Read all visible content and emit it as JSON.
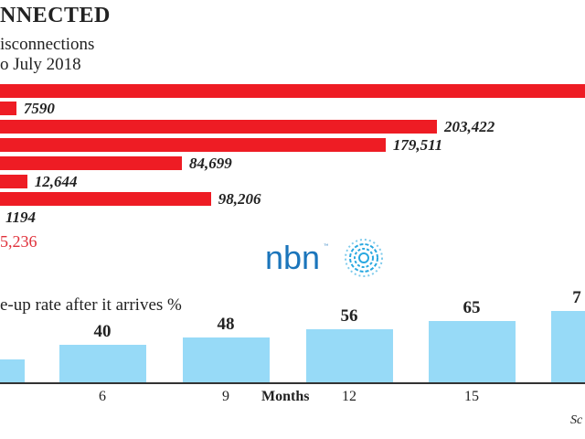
{
  "chart_data": [
    {
      "type": "bar",
      "orientation": "horizontal",
      "title": "NNECTED",
      "subtitle": [
        "isconnections",
        "o July 2018"
      ],
      "values": [
        null,
        7590,
        203422,
        179511,
        84699,
        12644,
        98206,
        1194
      ],
      "labels": [
        "",
        "7590",
        "203,422",
        "179,511",
        "84,699",
        "12,644",
        "98,206",
        "1194"
      ],
      "total_label": "5,236",
      "bar_color": "#ee1c24",
      "total_color": "#e0303a"
    },
    {
      "type": "bar",
      "title": "e-up rate after it arrives %",
      "xlabel": "Months",
      "categories": [
        "",
        "6",
        "9",
        "12",
        "15",
        ""
      ],
      "values": [
        null,
        40,
        48,
        56,
        65,
        null
      ],
      "data_labels": [
        "",
        "40",
        "48",
        "56",
        "65",
        "7"
      ],
      "bar_color": "#97daf7",
      "source": "Sc"
    }
  ],
  "logo": {
    "text": "nbn",
    "color": "#1b75bb",
    "ring_color": "#29a8e0"
  }
}
